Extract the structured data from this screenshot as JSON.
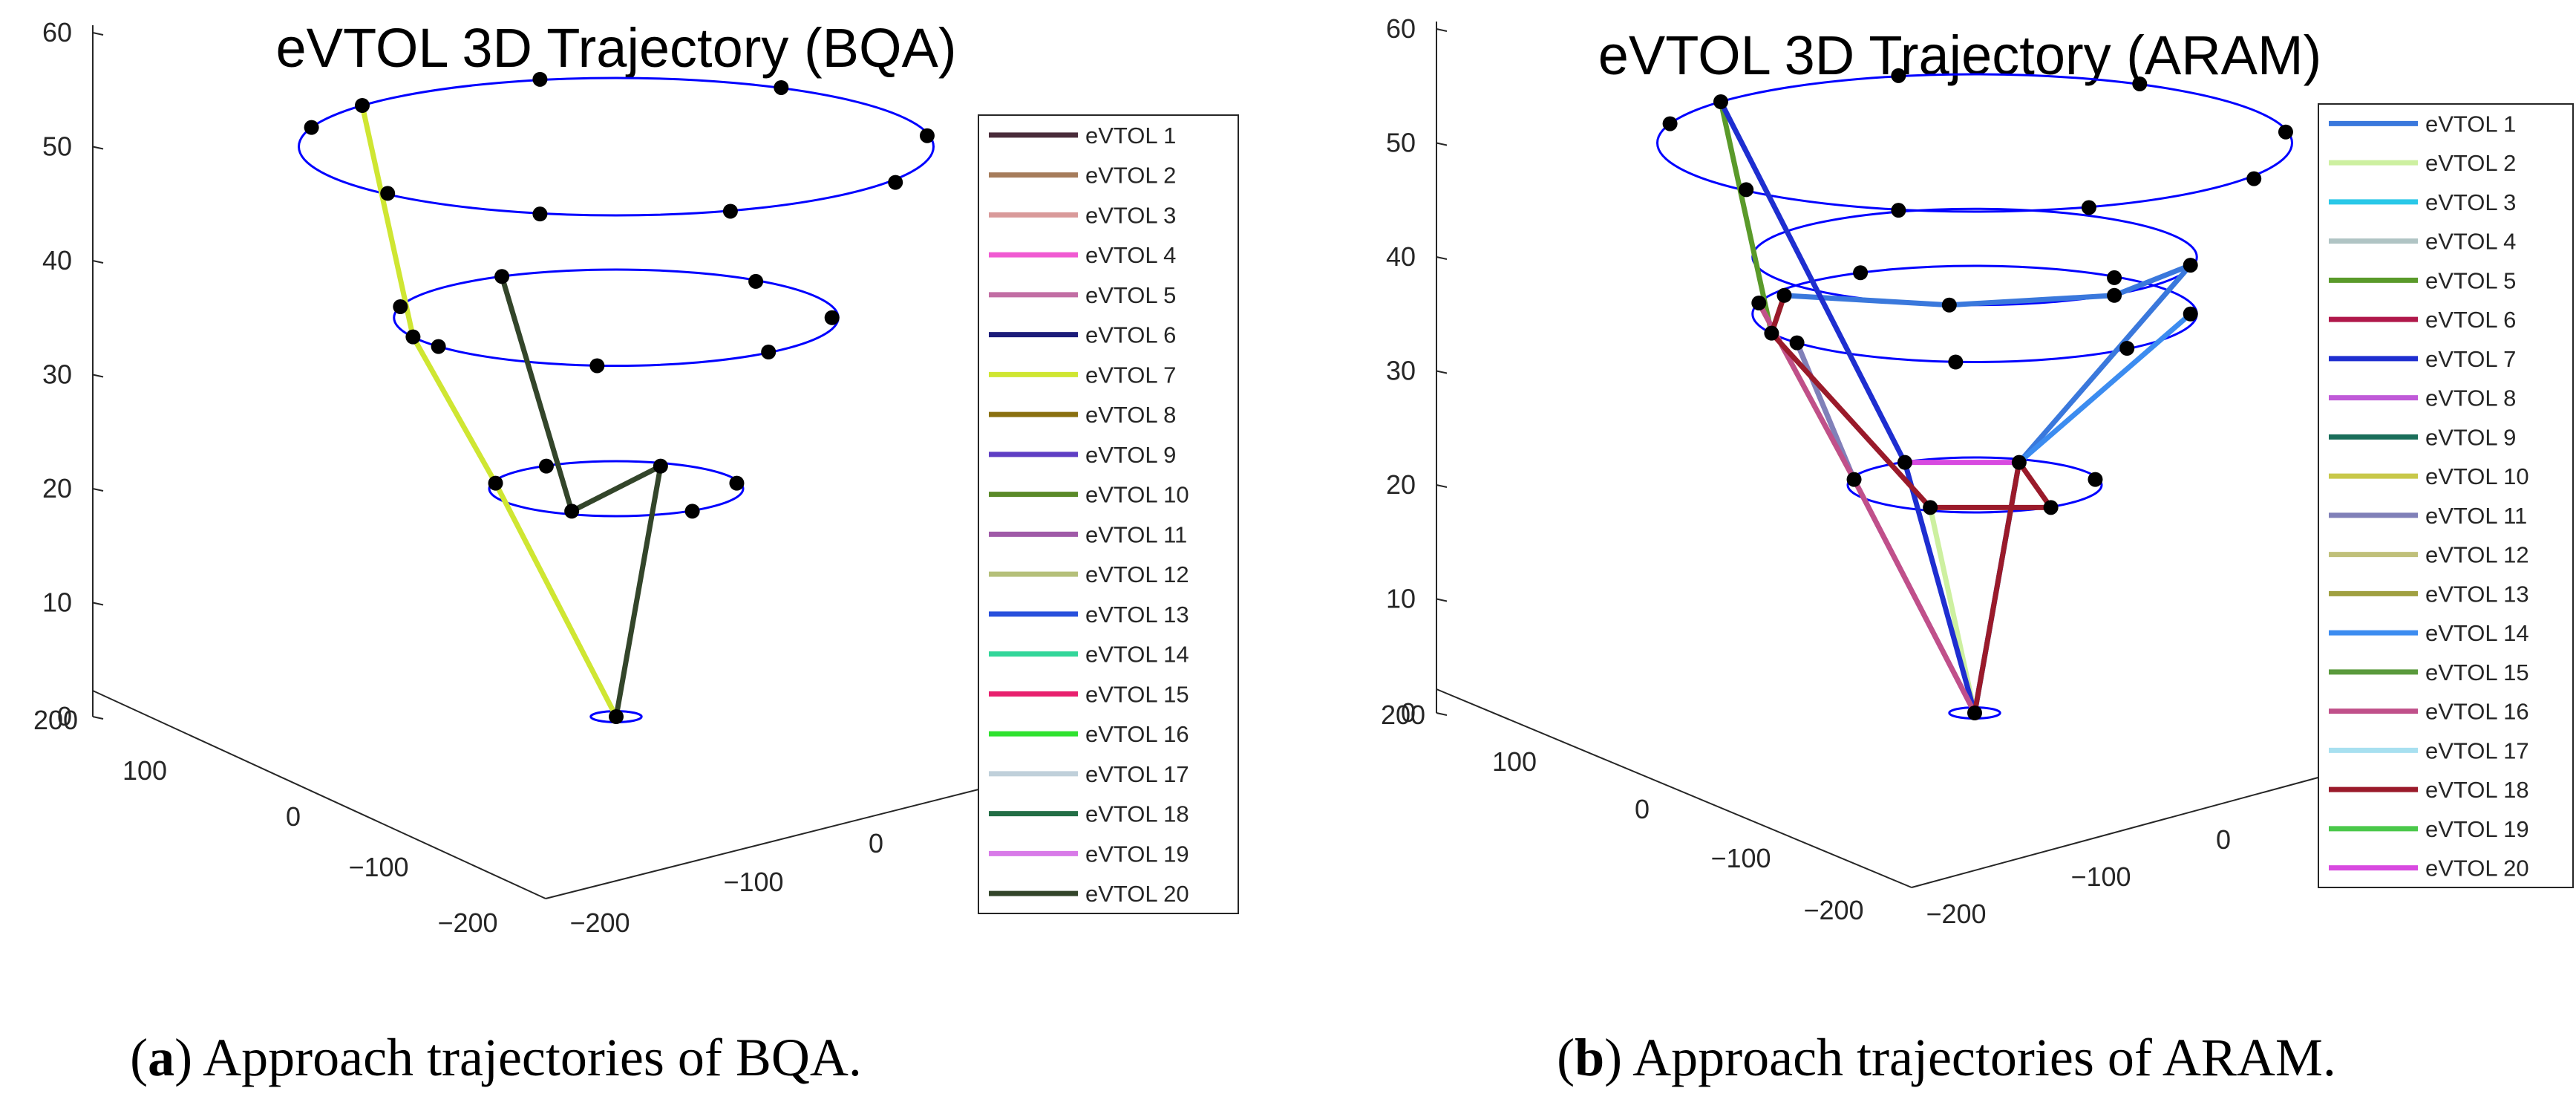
{
  "figure": {
    "caption_a": {
      "open": "(",
      "letter": "a",
      "text": ") Approach trajectories of BQA."
    },
    "caption_b": {
      "open": "(",
      "letter": "b",
      "text": ") Approach trajectories of ARAM."
    }
  },
  "chart_data": [
    {
      "type": "line3d",
      "title": "eVTOL 3D Trajectory (BQA)",
      "xlim": [
        -200,
        200
      ],
      "ylim": [
        -200,
        200
      ],
      "zlim": [
        0,
        60
      ],
      "x_ticks": [
        "-200",
        "-100",
        "0"
      ],
      "y_ticks": [
        "200",
        "100",
        "0",
        "-100",
        "-200"
      ],
      "z_ticks": [
        "0",
        "10",
        "20",
        "30",
        "40",
        "50",
        "60"
      ],
      "grid": false,
      "legend_position": "right",
      "circles": [
        {
          "z": 0,
          "radius": 20,
          "color": "#0000ff"
        },
        {
          "z": 20,
          "radius": 100,
          "color": "#0000ff"
        },
        {
          "z": 35,
          "radius": 175,
          "color": "#0000ff"
        },
        {
          "z": 50,
          "radius": 250,
          "color": "#0000ff"
        }
      ],
      "waypoints": [
        [
          0,
          0,
          0
        ],
        [
          -95,
          -20,
          20
        ],
        [
          -35,
          82,
          20
        ],
        [
          60,
          82,
          20
        ],
        [
          95,
          -20,
          20
        ],
        [
          35,
          -82,
          20
        ],
        [
          -55,
          -82,
          20
        ],
        [
          -170,
          -40,
          35
        ],
        [
          -140,
          105,
          35
        ],
        [
          -15,
          175,
          35
        ],
        [
          120,
          125,
          35
        ],
        [
          170,
          0,
          35
        ],
        [
          110,
          -132,
          35
        ],
        [
          -90,
          -150,
          35
        ],
        [
          -160,
          70,
          35
        ],
        [
          -240,
          -70,
          50
        ],
        [
          -180,
          170,
          50
        ],
        [
          -60,
          245,
          50
        ],
        [
          90,
          235,
          50
        ],
        [
          220,
          130,
          50
        ],
        [
          245,
          -40,
          50
        ],
        [
          130,
          -215,
          50
        ],
        [
          -60,
          -245,
          50
        ],
        [
          -200,
          -150,
          50
        ]
      ],
      "series": [
        {
          "name": "eVTOL 1",
          "color": "#4a2c3a",
          "path": []
        },
        {
          "name": "eVTOL 2",
          "color": "#a67c5b",
          "path": []
        },
        {
          "name": "eVTOL 3",
          "color": "#d99a9a",
          "path": []
        },
        {
          "name": "eVTOL 4",
          "color": "#f05ad2",
          "path": []
        },
        {
          "name": "eVTOL 5",
          "color": "#c26ea4",
          "path": []
        },
        {
          "name": "eVTOL 6",
          "color": "#1c1c7a",
          "path": []
        },
        {
          "name": "eVTOL 7",
          "color": "#cfe632",
          "path": [
            [
              0,
              0,
              0
            ],
            [
              -95,
              -20,
              20
            ],
            [
              -160,
              70,
              35
            ],
            [
              -200,
              -150,
              50
            ]
          ]
        },
        {
          "name": "eVTOL 8",
          "color": "#8a7010",
          "path": []
        },
        {
          "name": "eVTOL 9",
          "color": "#5f3fc4",
          "path": []
        },
        {
          "name": "eVTOL 10",
          "color": "#5a8a28",
          "path": []
        },
        {
          "name": "eVTOL 11",
          "color": "#a05aa8",
          "path": []
        },
        {
          "name": "eVTOL 12",
          "color": "#b5c07a",
          "path": []
        },
        {
          "name": "eVTOL 13",
          "color": "#2850dc",
          "path": []
        },
        {
          "name": "eVTOL 14",
          "color": "#33d69a",
          "path": []
        },
        {
          "name": "eVTOL 15",
          "color": "#e8206e",
          "path": []
        },
        {
          "name": "eVTOL 16",
          "color": "#2fe22f",
          "path": []
        },
        {
          "name": "eVTOL 17",
          "color": "#c0d0da",
          "path": []
        },
        {
          "name": "eVTOL 18",
          "color": "#236e46",
          "path": []
        },
        {
          "name": "eVTOL 19",
          "color": "#d87ae8",
          "path": []
        },
        {
          "name": "eVTOL 20",
          "color": "#33452a",
          "path": [
            [
              0,
              0,
              0
            ],
            [
              35,
              -82,
              20
            ],
            [
              -35,
              82,
              20
            ],
            [
              -90,
              -150,
              35
            ]
          ]
        }
      ]
    },
    {
      "type": "line3d",
      "title": "eVTOL 3D Trajectory (ARAM)",
      "xlim": [
        -200,
        200
      ],
      "ylim": [
        -200,
        200
      ],
      "zlim": [
        0,
        60
      ],
      "x_ticks": [
        "-200",
        "-100",
        "0"
      ],
      "y_ticks": [
        "200",
        "100",
        "0",
        "-100",
        "-200"
      ],
      "z_ticks": [
        "0",
        "10",
        "20",
        "30",
        "40",
        "50",
        "60"
      ],
      "grid": false,
      "legend_position": "right",
      "circles": [
        {
          "z": 0,
          "radius": 20,
          "color": "#0000ff"
        },
        {
          "z": 20,
          "radius": 100,
          "color": "#0000ff"
        },
        {
          "z": 35,
          "radius": 175,
          "color": "#0000ff"
        },
        {
          "z": 40,
          "radius": 175,
          "color": "#0000ff"
        },
        {
          "z": 50,
          "radius": 250,
          "color": "#0000ff"
        }
      ],
      "waypoints": [
        [
          0,
          0,
          0
        ],
        [
          -95,
          -20,
          20
        ],
        [
          -35,
          82,
          20
        ],
        [
          60,
          82,
          20
        ],
        [
          95,
          -20,
          20
        ],
        [
          35,
          -82,
          20
        ],
        [
          -55,
          -82,
          20
        ],
        [
          -170,
          -40,
          35
        ],
        [
          -140,
          105,
          35
        ],
        [
          -15,
          175,
          35
        ],
        [
          120,
          125,
          35
        ],
        [
          170,
          0,
          35
        ],
        [
          110,
          -132,
          35
        ],
        [
          -90,
          -150,
          35
        ],
        [
          -160,
          70,
          35
        ],
        [
          -150,
          140,
          40
        ],
        [
          -20,
          175,
          40
        ],
        [
          110,
          140,
          40
        ],
        [
          170,
          30,
          40
        ],
        [
          -240,
          -70,
          50
        ],
        [
          -180,
          170,
          50
        ],
        [
          -60,
          245,
          50
        ],
        [
          90,
          235,
          50
        ],
        [
          220,
          130,
          50
        ],
        [
          245,
          -40,
          50
        ],
        [
          130,
          -215,
          50
        ],
        [
          -60,
          -245,
          50
        ],
        [
          -200,
          -150,
          50
        ]
      ],
      "series": [
        {
          "name": "eVTOL 1",
          "color": "#3a78dc",
          "path": [
            [
              0,
              0,
              0
            ],
            [
              35,
              -82,
              20
            ],
            [
              170,
              30,
              40
            ],
            [
              110,
              140,
              40
            ],
            [
              -20,
              175,
              40
            ],
            [
              -150,
              140,
              40
            ]
          ]
        },
        {
          "name": "eVTOL 2",
          "color": "#cdf0a0",
          "path": [
            [
              0,
              0,
              0
            ],
            [
              -35,
              82,
              20
            ]
          ]
        },
        {
          "name": "eVTOL 3",
          "color": "#2ac8e8",
          "path": []
        },
        {
          "name": "eVTOL 4",
          "color": "#b0c4c4",
          "path": []
        },
        {
          "name": "eVTOL 5",
          "color": "#5a9a2a",
          "path": [
            [
              -150,
              140,
              40
            ],
            [
              -160,
              70,
              35
            ],
            [
              -200,
              -150,
              50
            ]
          ]
        },
        {
          "name": "eVTOL 6",
          "color": "#b0184a",
          "path": []
        },
        {
          "name": "eVTOL 7",
          "color": "#1e2ed0",
          "path": [
            [
              0,
              0,
              0
            ],
            [
              -55,
              -82,
              20
            ],
            [
              -200,
              -150,
              50
            ]
          ]
        },
        {
          "name": "eVTOL 8",
          "color": "#c05ad8",
          "path": [
            [
              0,
              0,
              0
            ],
            [
              -95,
              -20,
              20
            ],
            [
              -140,
              105,
              35
            ]
          ]
        },
        {
          "name": "eVTOL 9",
          "color": "#1a6e5a",
          "path": []
        },
        {
          "name": "eVTOL 10",
          "color": "#c8c84a",
          "path": [
            [
              -95,
              -20,
              20
            ],
            [
              -170,
              -40,
              35
            ]
          ]
        },
        {
          "name": "eVTOL 11",
          "color": "#8080b8",
          "path": [
            [
              -95,
              -20,
              20
            ],
            [
              -140,
              105,
              35
            ]
          ]
        },
        {
          "name": "eVTOL 12",
          "color": "#c0c07a",
          "path": []
        },
        {
          "name": "eVTOL 13",
          "color": "#a0a040",
          "path": []
        },
        {
          "name": "eVTOL 14",
          "color": "#3c8cf0",
          "path": [
            [
              0,
              0,
              0
            ],
            [
              35,
              -82,
              20
            ],
            [
              170,
              0,
              35
            ]
          ]
        },
        {
          "name": "eVTOL 15",
          "color": "#5a9a3c",
          "path": []
        },
        {
          "name": "eVTOL 16",
          "color": "#c0508a",
          "path": [
            [
              0,
              0,
              0
            ],
            [
              -95,
              -20,
              20
            ],
            [
              -170,
              -40,
              35
            ]
          ]
        },
        {
          "name": "eVTOL 17",
          "color": "#a8e0f0",
          "path": []
        },
        {
          "name": "eVTOL 18",
          "color": "#9a1a2a",
          "path": [
            [
              0,
              0,
              0
            ],
            [
              35,
              -82,
              20
            ],
            [
              60,
              82,
              20
            ],
            [
              -35,
              82,
              20
            ],
            [
              -160,
              70,
              35
            ],
            [
              -150,
              140,
              40
            ]
          ]
        },
        {
          "name": "eVTOL 19",
          "color": "#4ac84a",
          "path": []
        },
        {
          "name": "eVTOL 20",
          "color": "#d84ae0",
          "path": [
            [
              -55,
              -82,
              20
            ],
            [
              35,
              -82,
              20
            ]
          ]
        }
      ]
    }
  ]
}
